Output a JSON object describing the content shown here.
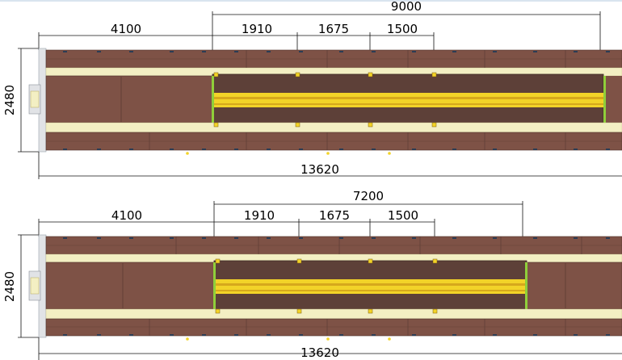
{
  "colors": {
    "brown_outer": "#7e5246",
    "brown_inner": "#5d4038",
    "cream": "#f3efc3",
    "yellow": "#f2d328",
    "yellow_dark": "#d6a81c",
    "green": "#8fcf3a",
    "grey": "#e1e3e6"
  },
  "plans": [
    {
      "name": "plan-top",
      "span_label": "9000",
      "left_label": "4100",
      "segment_labels": [
        "1910",
        "1675",
        "1500"
      ],
      "height_label": "2480",
      "total_label": "13620"
    },
    {
      "name": "plan-bottom",
      "span_label": "7200",
      "left_label": "4100",
      "segment_labels": [
        "1910",
        "1675",
        "1500"
      ],
      "height_label": "2480",
      "total_label": "13620"
    }
  ]
}
